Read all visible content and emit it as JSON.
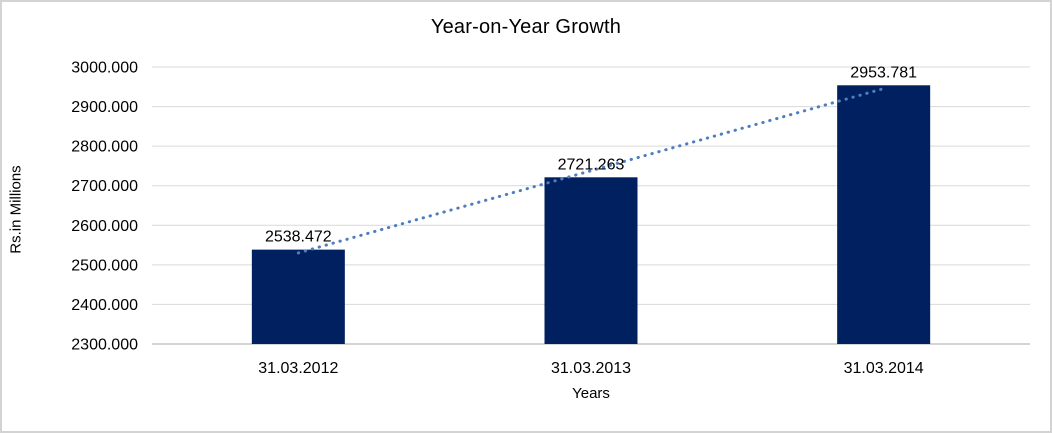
{
  "chart_data": {
    "type": "bar",
    "title": "Year-on-Year Growth",
    "xlabel": "Years",
    "ylabel": "Rs.in Millions",
    "categories": [
      "31.03.2012",
      "31.03.2013",
      "31.03.2014"
    ],
    "values": [
      2538.472,
      2721.263,
      2953.781
    ],
    "data_labels": [
      "2538.472",
      "2721.263",
      "2953.781"
    ],
    "ylim": [
      2300,
      3000
    ],
    "ytick_step": 100,
    "ytick_labels": [
      "2300.000",
      "2400.000",
      "2500.000",
      "2600.000",
      "2700.000",
      "2800.000",
      "2900.000",
      "3000.000"
    ],
    "grid": true,
    "legend": "none",
    "trendline": {
      "type": "linear",
      "style": "dotted"
    },
    "colors": {
      "bar": "#002060",
      "trendline": "#4e7ec0",
      "gridline": "#d9d9d9",
      "axis_line": "#c6c6c6",
      "text": "#000000",
      "frame_border": "#d3d3d3",
      "background": "#ffffff"
    }
  }
}
